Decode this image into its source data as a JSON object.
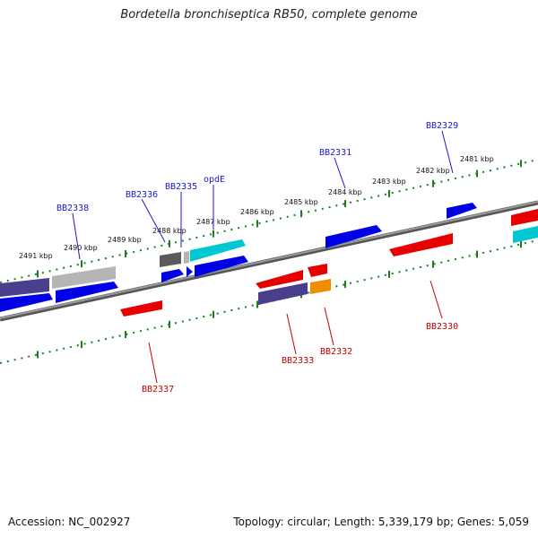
{
  "title": "Bordetella bronchiseptica RB50, complete genome",
  "footer": {
    "accession": "Accession: NC_002927",
    "summary": "Topology: circular; Length: 5,339,179 bp; Genes: 5,059"
  },
  "ticks": [
    "2491 kbp",
    "2490 kbp",
    "2489 kbp",
    "2488 kbp",
    "2487 kbp",
    "2486 kbp",
    "2485 kbp",
    "2484 kbp",
    "2483 kbp",
    "2482 kbp",
    "2481 kbp"
  ],
  "labels_top": [
    "BB2338",
    "BB2336",
    "BB2335",
    "opdE",
    "BB2331",
    "BB2329"
  ],
  "labels_bottom": [
    "BB2337",
    "BB2333",
    "BB2332",
    "BB2330"
  ],
  "colors": {
    "backbone": "#808080",
    "tick_track": "#1e7d1e",
    "forward_gene": "#0000e6",
    "reverse_gene": "#e60000",
    "cyan_gene": "#00c8d2",
    "purple_gene": "#4a3f8c",
    "grey_gene": "#b0b0b0",
    "darkgrey_gene": "#5a5a5a",
    "orange_gene": "#f08c00"
  }
}
